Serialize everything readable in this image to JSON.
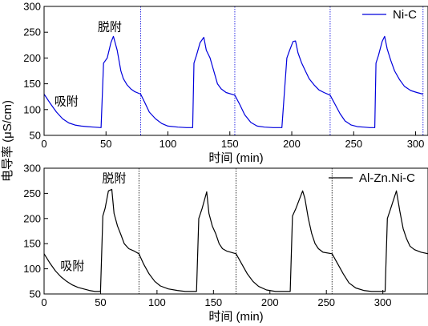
{
  "ylabel_shared": "电导率 (μS/cm)",
  "chart_data": [
    {
      "type": "line",
      "xlabel": "时间 (min)",
      "ylabel": "电导率 (μS/cm)",
      "xlim": [
        0,
        310
      ],
      "ylim": [
        50,
        300
      ],
      "xticks": [
        0,
        50,
        100,
        150,
        200,
        250,
        300
      ],
      "yticks": [
        50,
        100,
        150,
        200,
        250,
        300
      ],
      "legend": {
        "label": "Ni-C",
        "position": "top-right"
      },
      "annotations": [
        {
          "text": "脱附",
          "x": 53,
          "y": 253
        },
        {
          "text": "吸附",
          "x": 18,
          "y": 108
        }
      ],
      "separators_x": [
        78,
        154,
        231,
        306
      ],
      "series": [
        {
          "name": "Ni-C",
          "color": "#0000dd",
          "x": [
            0,
            5,
            10,
            15,
            20,
            25,
            30,
            35,
            40,
            46,
            48,
            51,
            54,
            56,
            59,
            62,
            64,
            67,
            70,
            73,
            78,
            81,
            85,
            90,
            95,
            100,
            108,
            115,
            120,
            121,
            123,
            126,
            129,
            131,
            134,
            137,
            140,
            143,
            147,
            154,
            158,
            162,
            167,
            172,
            178,
            185,
            192,
            196,
            198,
            201,
            203,
            205,
            208,
            211,
            214,
            218,
            222,
            226,
            231,
            235,
            239,
            243,
            248,
            253,
            258,
            263,
            267,
            268,
            270,
            273,
            275,
            277,
            280,
            283,
            287,
            291,
            296,
            301,
            306
          ],
          "y": [
            130,
            112,
            95,
            82,
            74,
            70,
            68,
            67,
            66,
            65,
            190,
            200,
            230,
            242,
            215,
            175,
            160,
            148,
            140,
            135,
            130,
            115,
            95,
            82,
            73,
            68,
            66,
            65,
            65,
            190,
            205,
            230,
            240,
            215,
            200,
            175,
            150,
            140,
            133,
            128,
            110,
            90,
            75,
            68,
            66,
            65,
            65,
            200,
            213,
            232,
            233,
            210,
            190,
            175,
            160,
            148,
            138,
            133,
            128,
            110,
            92,
            78,
            70,
            67,
            66,
            65,
            65,
            190,
            205,
            232,
            242,
            218,
            195,
            175,
            158,
            145,
            137,
            133,
            130
          ]
        }
      ]
    },
    {
      "type": "line",
      "xlabel": "时间 (min)",
      "ylabel": "电导率 (μS/cm)",
      "xlim": [
        0,
        340
      ],
      "ylim": [
        50,
        300
      ],
      "xticks": [
        0,
        50,
        100,
        150,
        200,
        250,
        300
      ],
      "yticks": [
        50,
        100,
        150,
        200,
        250,
        300
      ],
      "legend": {
        "label": "Al-Zn.Ni-C",
        "position": "top-right"
      },
      "annotations": [
        {
          "text": "脱附",
          "x": 62,
          "y": 272
        },
        {
          "text": "吸附",
          "x": 25,
          "y": 98
        }
      ],
      "separators_x": [
        84,
        170,
        255
      ],
      "series": [
        {
          "name": "Al-Zn.Ni-C",
          "color": "#000000",
          "x": [
            0,
            5,
            10,
            15,
            20,
            25,
            30,
            35,
            40,
            45,
            50,
            52,
            54,
            57,
            60,
            62,
            65,
            68,
            71,
            75,
            80,
            84,
            88,
            93,
            98,
            103,
            110,
            118,
            125,
            130,
            135,
            137,
            140,
            144,
            146,
            149,
            152,
            155,
            158,
            162,
            170,
            175,
            180,
            185,
            190,
            197,
            205,
            212,
            218,
            220,
            223,
            229,
            231,
            234,
            237,
            240,
            243,
            247,
            255,
            260,
            265,
            270,
            276,
            283,
            290,
            297,
            302,
            304,
            307,
            312,
            315,
            318,
            321,
            324,
            328,
            334,
            340
          ],
          "y": [
            130,
            112,
            96,
            84,
            75,
            68,
            63,
            60,
            57,
            55,
            55,
            205,
            220,
            255,
            258,
            210,
            185,
            168,
            150,
            140,
            135,
            130,
            110,
            90,
            75,
            66,
            60,
            57,
            55,
            55,
            55,
            200,
            220,
            253,
            210,
            185,
            170,
            150,
            140,
            135,
            130,
            110,
            90,
            75,
            65,
            58,
            55,
            55,
            55,
            205,
            220,
            255,
            240,
            200,
            170,
            150,
            140,
            133,
            130,
            110,
            90,
            72,
            62,
            57,
            55,
            55,
            55,
            200,
            220,
            255,
            215,
            180,
            160,
            145,
            138,
            133,
            130
          ]
        }
      ]
    }
  ]
}
